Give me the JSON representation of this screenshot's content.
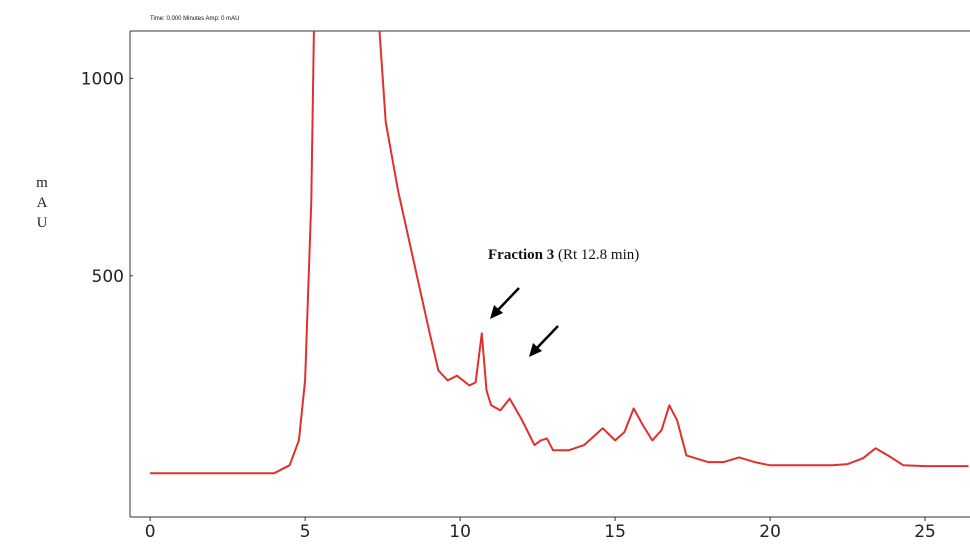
{
  "chart_data": {
    "type": "line",
    "header": "Time: 0.000 Minutes   Amp: 0 mAU",
    "y_label": "mAU",
    "annotation": {
      "label": "Fraction 3",
      "detail": "(Rt 12.8 min)"
    },
    "x": [
      0,
      4,
      4.5,
      4.8,
      5.0,
      5.2,
      5.3,
      6.2,
      7.4,
      7.6,
      8.0,
      8.5,
      9.0,
      9.3,
      9.6,
      9.9,
      10.3,
      10.5,
      10.7,
      10.85,
      11.0,
      11.3,
      11.6,
      12.0,
      12.4,
      12.6,
      12.8,
      13.0,
      13.5,
      14.0,
      14.6,
      15.0,
      15.3,
      15.6,
      15.9,
      16.2,
      16.5,
      16.75,
      17.0,
      17.3,
      18.0,
      18.5,
      19.0,
      19.5,
      20.0,
      22.0,
      22.5,
      23.0,
      23.4,
      23.8,
      24.3,
      25.0,
      26.4
    ],
    "series": [
      {
        "name": "mAU",
        "color": "#e0302e",
        "values": [
          0,
          0,
          20,
          83,
          235,
          690,
          1200,
          2000,
          1120,
          890,
          715,
          538,
          361,
          260,
          235,
          247,
          222,
          230,
          354,
          210,
          172,
          159,
          189,
          134,
          71,
          83,
          88,
          58,
          58,
          71,
          114,
          83,
          104,
          164,
          121,
          83,
          109,
          172,
          134,
          45,
          28,
          28,
          40,
          28,
          20,
          20,
          23,
          38,
          63,
          45,
          20,
          18,
          18
        ]
      }
    ],
    "xlim": [
      -0.65,
      26.45
    ],
    "ylim": [
      -111,
      1120
    ],
    "xticks": [
      0,
      5,
      10,
      15,
      20,
      25
    ],
    "yticks": [
      500,
      1000
    ]
  }
}
